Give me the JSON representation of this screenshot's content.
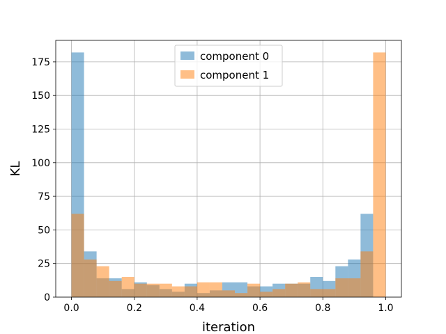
{
  "chart_data": {
    "type": "bar",
    "subtype": "histogram-overlay",
    "title": "",
    "xlabel": "iteration",
    "ylabel": "KL",
    "xlim": [
      -0.05,
      1.05
    ],
    "ylim": [
      0,
      191
    ],
    "grid": true,
    "legend_position": "top-center",
    "bins": 25,
    "bin_edges_range": [
      0.0,
      1.0
    ],
    "xticks": [
      0.0,
      0.2,
      0.4,
      0.6,
      0.8,
      1.0
    ],
    "xtick_labels": [
      "0.0",
      "0.2",
      "0.4",
      "0.6",
      "0.8",
      "1.0"
    ],
    "yticks": [
      0,
      25,
      50,
      75,
      100,
      125,
      150,
      175
    ],
    "ytick_labels": [
      "0",
      "25",
      "50",
      "75",
      "100",
      "125",
      "150",
      "175"
    ],
    "series": [
      {
        "name": "component 0",
        "color": "#1f77b4",
        "alpha": 0.5,
        "values": [
          182,
          34,
          14,
          14,
          6,
          11,
          9,
          6,
          4,
          10,
          3,
          5,
          11,
          11,
          8,
          8,
          10,
          10,
          10,
          15,
          12,
          23,
          28,
          62,
          0
        ]
      },
      {
        "name": "component 1",
        "color": "#ff7f0e",
        "alpha": 0.5,
        "values": [
          62,
          28,
          23,
          12,
          15,
          10,
          10,
          10,
          8,
          8,
          11,
          11,
          5,
          3,
          10,
          4,
          6,
          10,
          11,
          6,
          6,
          14,
          14,
          34,
          182
        ]
      }
    ]
  }
}
